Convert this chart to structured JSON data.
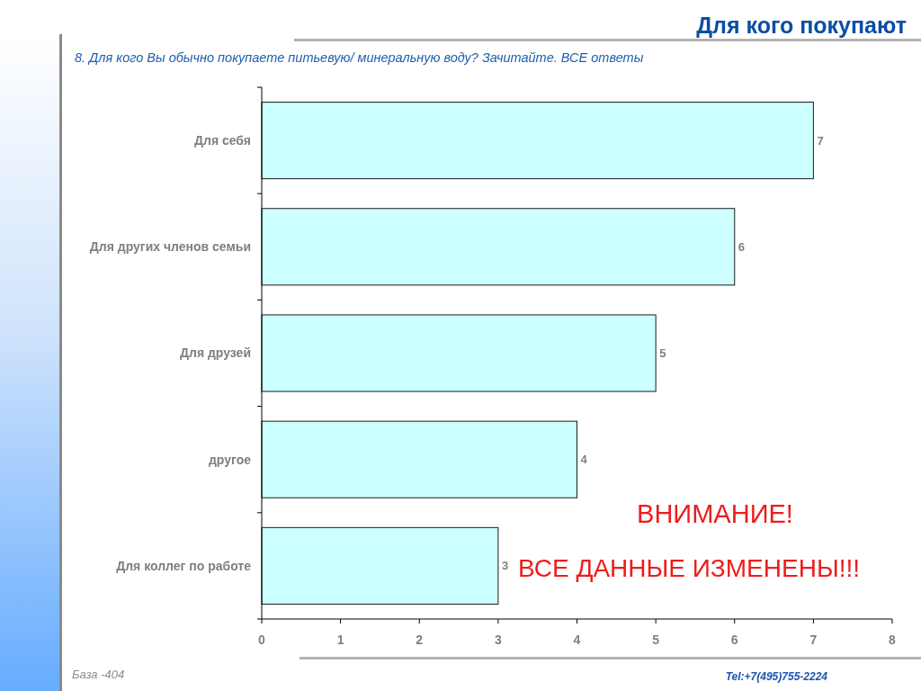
{
  "chart_data": {
    "type": "bar",
    "orientation": "horizontal",
    "title": "Для кого покупают",
    "subtitle": "8. Для кого Вы обычно покупаете питьевую/ минеральную воду? Зачитайте. ВСЕ ответы",
    "categories": [
      "Для себя",
      "Для других членов семьи",
      "Для друзей",
      "другое",
      "Для коллег по работе"
    ],
    "values": [
      7,
      6,
      5,
      4,
      3
    ],
    "color": "#ccffff",
    "xlim": [
      0,
      8
    ],
    "xticks": [
      0,
      1,
      2,
      3,
      4,
      5,
      6,
      7,
      8
    ],
    "grid": false,
    "data_labels": true,
    "annotations": [
      "ВНИМАНИЕ!",
      "ВСЕ ДАННЫЕ ИЗМЕНЕНЫ!!!",
      "База -404",
      "Tel:+7(495)755-2224"
    ]
  }
}
